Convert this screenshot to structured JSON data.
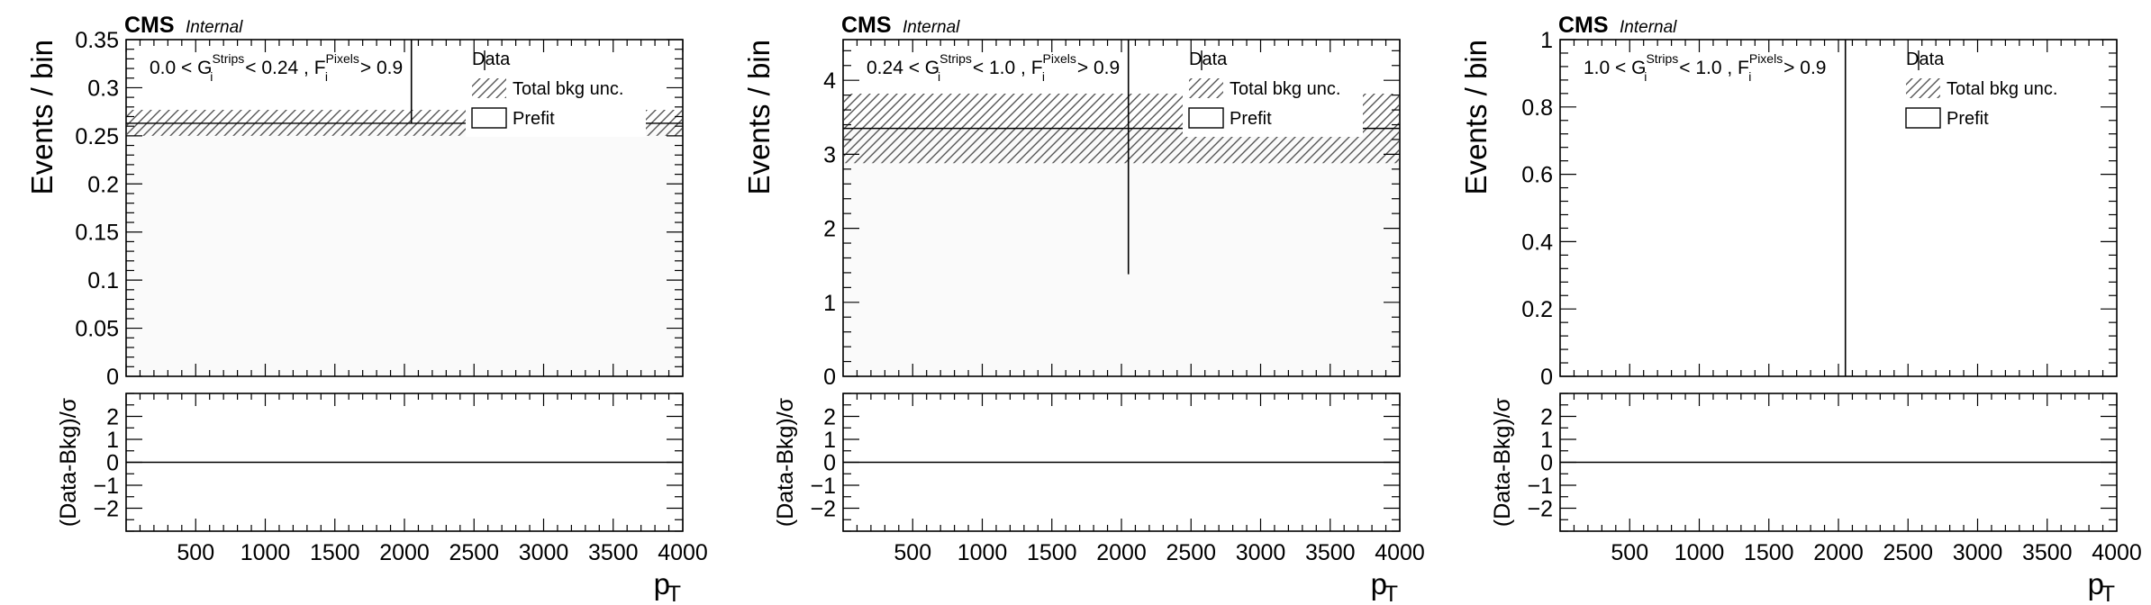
{
  "figure": {
    "experiment": "CMS",
    "status": "Internal",
    "legend": {
      "data_label": "Data",
      "unc_label": "Total bkg unc.",
      "prefit_label": "Prefit"
    },
    "ratio_ylabel": "(Data-Bkg)/σ",
    "ylabel": "Events / bin",
    "xlabel_main": "p",
    "xlabel_sub": "T",
    "x_tick_labels": [
      "500",
      "1000",
      "1500",
      "2000",
      "2500",
      "3000",
      "3500",
      "4000"
    ],
    "ratio_tick_labels": [
      "2",
      "1",
      "0",
      "−1",
      "−2"
    ]
  },
  "panels": [
    {
      "cut": {
        "lo": "0.0 < G",
        "g_sup": "Strips",
        "g_sub": "i",
        "hi": " < 0.24 , F",
        "f_sup": "Pixels",
        "f_sub": "i",
        "tail": " > 0.9"
      },
      "y_tick_labels": [
        "0",
        "0.05",
        "0.1",
        "0.15",
        "0.2",
        "0.25",
        "0.3",
        "0.35"
      ]
    },
    {
      "cut": {
        "lo": "0.24 < G",
        "g_sup": "Strips",
        "g_sub": "i",
        "hi": " < 1.0 , F",
        "f_sup": "Pixels",
        "f_sub": "i",
        "tail": " > 0.9"
      },
      "y_tick_labels": [
        "0",
        "1",
        "2",
        "3",
        "4"
      ]
    },
    {
      "cut": {
        "lo": "1.0 < G",
        "g_sup": "Strips",
        "g_sub": "i",
        "hi": " < 1.0 , F",
        "f_sup": "Pixels",
        "f_sub": "i",
        "tail": " > 0.9"
      },
      "y_tick_labels": [
        "0",
        "0.2",
        "0.4",
        "0.6",
        "0.8",
        "1"
      ]
    }
  ],
  "chart_data": [
    {
      "type": "bar",
      "x_range": [
        0,
        4000
      ],
      "ylim": [
        0,
        0.35
      ],
      "bin_edges": [
        0,
        4000
      ],
      "background_prefit": [
        0.263
      ],
      "bkg_unc_band": [
        [
          0.25,
          0.277
        ]
      ],
      "data_point": {
        "x": 2050,
        "y_low": 0.263,
        "y_high": 0.35
      },
      "ratio": {
        "ylim": [
          -3,
          3
        ],
        "values": [
          0
        ]
      },
      "grid": false,
      "legend_placement": "top-right"
    },
    {
      "type": "bar",
      "x_range": [
        0,
        4000
      ],
      "ylim": [
        0,
        4.55
      ],
      "bin_edges": [
        0,
        4000
      ],
      "background_prefit": [
        3.35
      ],
      "bkg_unc_band": [
        [
          2.88,
          3.82
        ]
      ],
      "data_point": {
        "x": 2050,
        "y_low": 1.38,
        "y_high": 4.55
      },
      "ratio": {
        "ylim": [
          -3,
          3
        ],
        "values": [
          0
        ]
      },
      "grid": false,
      "legend_placement": "top-right"
    },
    {
      "type": "bar",
      "x_range": [
        0,
        4000
      ],
      "ylim": [
        0,
        1.0
      ],
      "bin_edges": [
        0,
        4000
      ],
      "background_prefit": [
        0
      ],
      "bkg_unc_band": [
        [
          0,
          0
        ]
      ],
      "data_point": {
        "x": 2050,
        "y_low": 0,
        "y_high": 1.0
      },
      "ratio": {
        "ylim": [
          -3,
          3
        ],
        "values": [
          0
        ]
      },
      "grid": false,
      "legend_placement": "top-right"
    }
  ]
}
